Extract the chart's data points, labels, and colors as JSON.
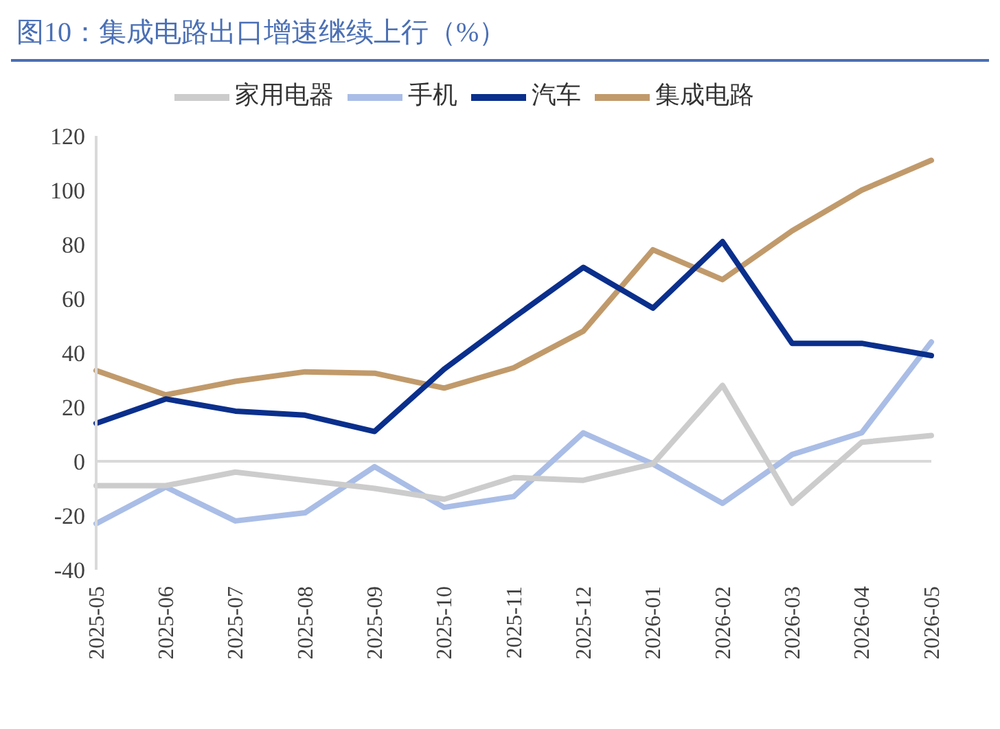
{
  "chart_data": {
    "type": "line",
    "title": "图10：集成电路出口增速继续上行（%）",
    "categories": [
      "2025-05",
      "2025-06",
      "2025-07",
      "2025-08",
      "2025-09",
      "2025-10",
      "2025-11",
      "2025-12",
      "2026-01",
      "2026-02",
      "2026-03",
      "2026-04",
      "2026-05"
    ],
    "series": [
      {
        "name": "集成电路",
        "color": "#c19a6b",
        "values": [
          33.5,
          24.5,
          29.5,
          33,
          32.5,
          27,
          34.5,
          48,
          78,
          67,
          85,
          100,
          111
        ]
      },
      {
        "name": "手机",
        "color": "#a9bde6",
        "values": [
          -23,
          -9.5,
          -22,
          -19,
          -2,
          -17,
          -13,
          10.5,
          -1,
          -15.5,
          2.5,
          10.5,
          44
        ]
      },
      {
        "name": "家用电器",
        "color": "#cccccc",
        "values": [
          -9,
          -9,
          -4,
          -7,
          -10,
          -14,
          -6,
          -7,
          -1,
          28,
          -15.5,
          7,
          9.5
        ]
      },
      {
        "name": "汽车",
        "color": "#0a2f8c",
        "values": [
          14,
          23,
          18.5,
          17,
          11,
          34,
          53,
          71.5,
          56.5,
          81,
          43.5,
          43.5,
          39
        ]
      }
    ],
    "ylim": [
      -40,
      120
    ],
    "yticks": [
      -40,
      -20,
      0,
      20,
      40,
      60,
      80,
      100,
      120
    ],
    "ref_lines": [
      {
        "axis": "y",
        "value": 0,
        "color": "#d9d9d9"
      }
    ],
    "grid": false,
    "legend": "top",
    "marker": "none",
    "line_style": "solid"
  }
}
